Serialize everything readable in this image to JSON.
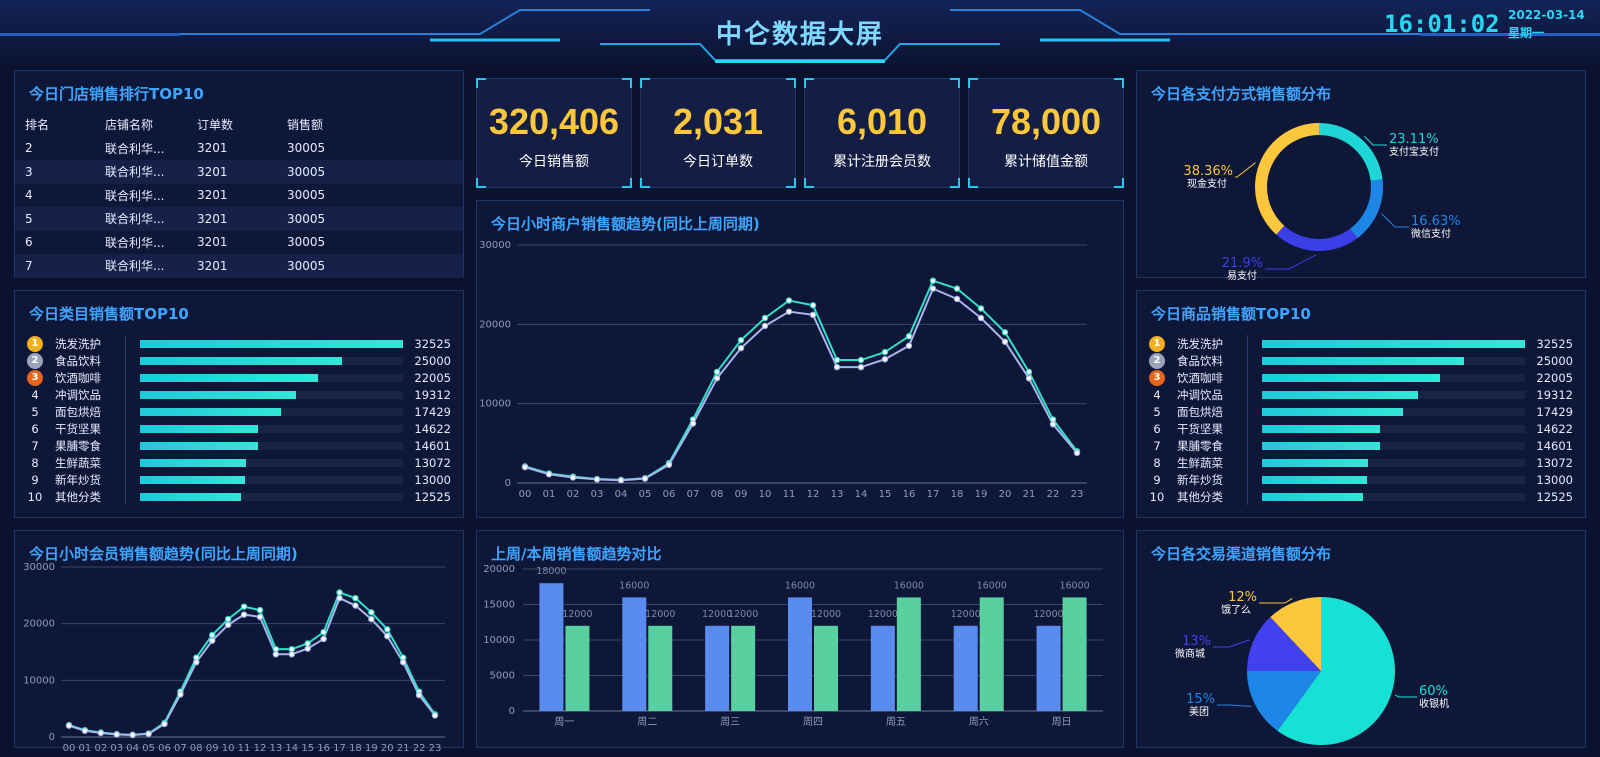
{
  "header": {
    "title": "中仑数据大屏",
    "time": "16:01:02",
    "date": "2022-03-14",
    "weekday": "星期一"
  },
  "store_rank": {
    "title": "今日门店销售排行TOP10",
    "columns": [
      "排名",
      "店铺名称",
      "订单数",
      "销售额"
    ],
    "rows": [
      [
        "2",
        "联合利华...",
        "3201",
        "30005"
      ],
      [
        "3",
        "联合利华...",
        "3201",
        "30005"
      ],
      [
        "4",
        "联合利华...",
        "3201",
        "30005"
      ],
      [
        "5",
        "联合利华...",
        "3201",
        "30005"
      ],
      [
        "6",
        "联合利华...",
        "3201",
        "30005"
      ],
      [
        "7",
        "联合利华...",
        "3201",
        "30005"
      ]
    ]
  },
  "kpis": [
    {
      "value": "320,406",
      "label": "今日销售额"
    },
    {
      "value": "2,031",
      "label": "今日订单数"
    },
    {
      "value": "6,010",
      "label": "累计注册会员数"
    },
    {
      "value": "78,000",
      "label": "累计储值金额"
    }
  ],
  "category_top": {
    "title": "今日类目销售额TOP10",
    "max": 32525,
    "items": [
      {
        "rank": "1",
        "name": "洗发洗护",
        "value": 32525
      },
      {
        "rank": "2",
        "name": "食品饮料",
        "value": 25000
      },
      {
        "rank": "3",
        "name": "饮酒咖啡",
        "value": 22005
      },
      {
        "rank": "4",
        "name": "冲调饮品",
        "value": 19312
      },
      {
        "rank": "5",
        "name": "面包烘焙",
        "value": 17429
      },
      {
        "rank": "6",
        "name": "干货坚果",
        "value": 14622
      },
      {
        "rank": "7",
        "name": "果脯零食",
        "value": 14601
      },
      {
        "rank": "8",
        "name": "生鲜蔬菜",
        "value": 13072
      },
      {
        "rank": "9",
        "name": "新年炒货",
        "value": 13000
      },
      {
        "rank": "10",
        "name": "其他分类",
        "value": 12525
      }
    ]
  },
  "product_top": {
    "title": "今日商品销售额TOP10",
    "max": 32525,
    "items": [
      {
        "rank": "1",
        "name": "洗发洗护",
        "value": 32525
      },
      {
        "rank": "2",
        "name": "食品饮料",
        "value": 25000
      },
      {
        "rank": "3",
        "name": "饮酒咖啡",
        "value": 22005
      },
      {
        "rank": "4",
        "name": "冲调饮品",
        "value": 19312
      },
      {
        "rank": "5",
        "name": "面包烘焙",
        "value": 17429
      },
      {
        "rank": "6",
        "name": "干货坚果",
        "value": 14622
      },
      {
        "rank": "7",
        "name": "果脯零食",
        "value": 14601
      },
      {
        "rank": "8",
        "name": "生鲜蔬菜",
        "value": 13072
      },
      {
        "rank": "9",
        "name": "新年炒货",
        "value": 13000
      },
      {
        "rank": "10",
        "name": "其他分类",
        "value": 12525
      }
    ]
  },
  "colors": {
    "accent": "#3ea5ff",
    "kpi_value": "#fcc73c",
    "bar": "#1fc9d9",
    "line_current": "#2fe0c8",
    "line_last": "#a8b6f0",
    "bar_last": "#5a8cf0",
    "bar_this": "#58d0a0"
  },
  "chart_data": [
    {
      "id": "merchant_hourly",
      "type": "line",
      "title": "今日小时商户销售额趋势(同比上周同期)",
      "x": [
        "00",
        "01",
        "02",
        "03",
        "04",
        "05",
        "06",
        "07",
        "08",
        "09",
        "10",
        "11",
        "12",
        "13",
        "14",
        "15",
        "16",
        "17",
        "18",
        "19",
        "20",
        "21",
        "22",
        "23"
      ],
      "ylim": [
        0,
        30000
      ],
      "yticks": [
        0,
        10000,
        20000,
        30000
      ],
      "series": [
        {
          "values": [
            2100,
            1200,
            800,
            500,
            400,
            600,
            2500,
            8000,
            14000,
            18000,
            20800,
            23000,
            22400,
            15500,
            15500,
            16500,
            18500,
            25500,
            24500,
            22000,
            19000,
            14000,
            8000,
            4000
          ]
        },
        {
          "values": [
            2000,
            1100,
            700,
            450,
            350,
            550,
            2300,
            7500,
            13200,
            17000,
            19800,
            21600,
            21200,
            14600,
            14600,
            15600,
            17300,
            24500,
            23200,
            20800,
            17800,
            13200,
            7400,
            3800
          ]
        }
      ]
    },
    {
      "id": "member_hourly",
      "type": "line",
      "title": "今日小时会员销售额趋势(同比上周同期)",
      "x": [
        "00",
        "01",
        "02",
        "03",
        "04",
        "05",
        "06",
        "07",
        "08",
        "09",
        "10",
        "11",
        "12",
        "13",
        "14",
        "15",
        "16",
        "17",
        "18",
        "19",
        "20",
        "21",
        "22",
        "23"
      ],
      "ylim": [
        0,
        30000
      ],
      "yticks": [
        0,
        10000,
        20000,
        30000
      ],
      "series": [
        {
          "values": [
            2100,
            1200,
            800,
            500,
            400,
            600,
            2500,
            8000,
            14000,
            18000,
            20800,
            23000,
            22400,
            15500,
            15500,
            16500,
            18500,
            25500,
            24500,
            22000,
            19000,
            14000,
            8000,
            4000
          ]
        },
        {
          "values": [
            2000,
            1100,
            700,
            450,
            350,
            550,
            2300,
            7500,
            13200,
            17000,
            19800,
            21600,
            21200,
            14600,
            14600,
            15600,
            17300,
            24500,
            23200,
            20800,
            17800,
            13200,
            7400,
            3800
          ]
        }
      ]
    },
    {
      "id": "week_compare",
      "type": "bar",
      "title": "上周/本周销售额趋势对比",
      "categories": [
        "周一",
        "周二",
        "周三",
        "周四",
        "周五",
        "周六",
        "周日"
      ],
      "ylim": [
        0,
        20000
      ],
      "yticks": [
        0,
        5000,
        10000,
        15000,
        20000
      ],
      "series": [
        {
          "values": [
            18000,
            16000,
            12000,
            16000,
            12000,
            12000,
            12000
          ]
        },
        {
          "values": [
            12000,
            12000,
            12000,
            12000,
            16000,
            16000,
            16000
          ]
        }
      ]
    },
    {
      "id": "payment_dist",
      "type": "pie",
      "title": "今日各支付方式销售额分布",
      "slices": [
        {
          "label": "支付宝支付",
          "pct": "23.11%",
          "value": 23.11,
          "color": "#1fd6d6"
        },
        {
          "label": "微信支付",
          "pct": "16.63%",
          "value": 16.63,
          "color": "#1e86e6"
        },
        {
          "label": "易支付",
          "pct": "21.9%",
          "value": 21.9,
          "color": "#3b3fe8"
        },
        {
          "label": "现金支付",
          "pct": "38.36%",
          "value": 38.36,
          "color": "#fcc73c"
        }
      ]
    },
    {
      "id": "channel_dist",
      "type": "pie",
      "title": "今日各交易渠道销售额分布",
      "slices": [
        {
          "label": "收银机",
          "pct": "60%",
          "value": 60,
          "color": "#17e0d5"
        },
        {
          "label": "美团",
          "pct": "15%",
          "value": 15,
          "color": "#1e86e6"
        },
        {
          "label": "微商城",
          "pct": "13%",
          "value": 13,
          "color": "#4141f0"
        },
        {
          "label": "饿了么",
          "pct": "12%",
          "value": 12,
          "color": "#fcc73c"
        }
      ]
    }
  ]
}
